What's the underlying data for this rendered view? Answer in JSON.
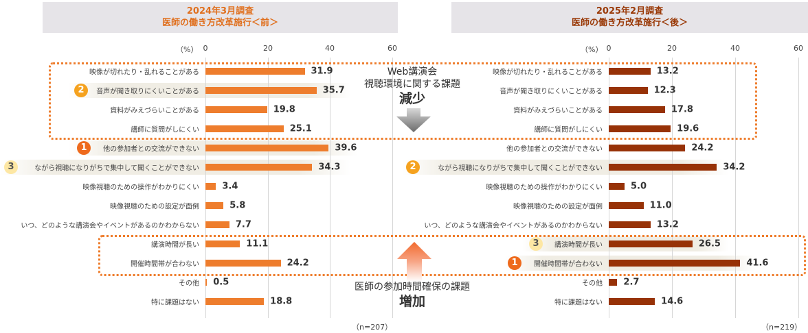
{
  "panels": {
    "left": {
      "title_line1": "2024年3月調査",
      "title_line2": "医師の働き方改革施行＜前＞",
      "unit": "（%）",
      "n": "（n=207）",
      "color": "#ee7d2d"
    },
    "right": {
      "title_line1": "2025年2月調査",
      "title_line2": "医師の働き方改革施行＜後＞",
      "unit": "（%）",
      "n": "（n=219）",
      "color": "#973207"
    }
  },
  "ticks": [
    "0",
    "20",
    "40",
    "60"
  ],
  "annotations": {
    "decrease": {
      "line1": "Web講演会",
      "line2": "視聴環境に関する課題",
      "big": "減少"
    },
    "increase": {
      "line1": "医師の参加時間確保の課題",
      "big": "増加"
    }
  },
  "rows": [
    {
      "label": "映像が切れたり・乱れることがある",
      "left": "31.9",
      "right": "13.2"
    },
    {
      "label": "音声が聞き取りにくいことがある",
      "left": "35.7",
      "right": "12.3"
    },
    {
      "label": "資料がみえづらいことがある",
      "left": "19.8",
      "right": "17.8"
    },
    {
      "label": "講師に質問がしにくい",
      "left": "25.1",
      "right": "19.6"
    },
    {
      "label": "他の参加者との交流ができない",
      "left": "39.6",
      "right": "24.2"
    },
    {
      "label": "ながら視聴になりがちで集中して聞くことができない",
      "left": "34.3",
      "right": "34.2"
    },
    {
      "label": "映像視聴のための操作がわかりにくい",
      "left": "3.4",
      "right": "5.0"
    },
    {
      "label": "映像視聴のための設定が面倒",
      "left": "5.8",
      "right": "11.0"
    },
    {
      "label": "いつ、どのような講演会やイベントがあるのかわからない",
      "left": "7.7",
      "right": "13.2"
    },
    {
      "label": "講演時間が長い",
      "left": "11.1",
      "right": "26.5"
    },
    {
      "label": "開催時間帯が合わない",
      "left": "24.2",
      "right": "41.6"
    },
    {
      "label": "その他",
      "left": "0.5",
      "right": "2.7"
    },
    {
      "label": "特に課題はない",
      "left": "18.8",
      "right": "14.6"
    }
  ],
  "badges": {
    "left": [
      {
        "row": 4,
        "rank": "1"
      },
      {
        "row": 1,
        "rank": "2"
      },
      {
        "row": 5,
        "rank": "3"
      }
    ],
    "right": [
      {
        "row": 10,
        "rank": "1"
      },
      {
        "row": 5,
        "rank": "2"
      },
      {
        "row": 9,
        "rank": "3"
      }
    ]
  },
  "chart_data": [
    {
      "type": "bar",
      "orientation": "horizontal",
      "title": "2024年3月調査 医師の働き方改革施行＜前＞",
      "xlabel": "（%）",
      "xlim": [
        0,
        60
      ],
      "xticks": [
        0,
        20,
        40,
        60
      ],
      "grid": true,
      "n": 207,
      "categories": [
        "映像が切れたり・乱れることがある",
        "音声が聞き取りにくいことがある",
        "資料がみえづらいことがある",
        "講師に質問がしにくい",
        "他の参加者との交流ができない",
        "ながら視聴になりがちで集中して聞くことができない",
        "映像視聴のための操作がわかりにくい",
        "映像視聴のための設定が面倒",
        "いつ、どのような講演会やイベントがあるのかわからない",
        "講演時間が長い",
        "開催時間帯が合わない",
        "その他",
        "特に課題はない"
      ],
      "values": [
        31.9,
        35.7,
        19.8,
        25.1,
        39.6,
        34.3,
        3.4,
        5.8,
        7.7,
        11.1,
        24.2,
        0.5,
        18.8
      ],
      "color": "#ee7d2d",
      "ranks": {
        "1": "他の参加者との交流ができない",
        "2": "音声が聞き取りにくいことがある",
        "3": "ながら視聴になりがちで集中して聞くことができない"
      }
    },
    {
      "type": "bar",
      "orientation": "horizontal",
      "title": "2025年2月調査 医師の働き方改革施行＜後＞",
      "xlabel": "（%）",
      "xlim": [
        0,
        60
      ],
      "xticks": [
        0,
        20,
        40,
        60
      ],
      "grid": true,
      "n": 219,
      "categories": [
        "映像が切れたり・乱れることがある",
        "音声が聞き取りにくいことがある",
        "資料がみえづらいことがある",
        "講師に質問がしにくい",
        "他の参加者との交流ができない",
        "ながら視聴になりがちで集中して聞くことができない",
        "映像視聴のための操作がわかりにくい",
        "映像視聴のための設定が面倒",
        "いつ、どのような講演会やイベントがあるのかわからない",
        "講演時間が長い",
        "開催時間帯が合わない",
        "その他",
        "特に課題はない"
      ],
      "values": [
        13.2,
        12.3,
        17.8,
        19.6,
        24.2,
        34.2,
        5.0,
        11.0,
        13.2,
        26.5,
        41.6,
        2.7,
        14.6
      ],
      "color": "#973207",
      "ranks": {
        "1": "開催時間帯が合わない",
        "2": "ながら視聴になりがちで集中して聞くことができない",
        "3": "講演時間が長い"
      },
      "annotations": [
        "Web講演会 視聴環境に関する課題 減少",
        "医師の参加時間確保の課題 増加"
      ]
    }
  ]
}
